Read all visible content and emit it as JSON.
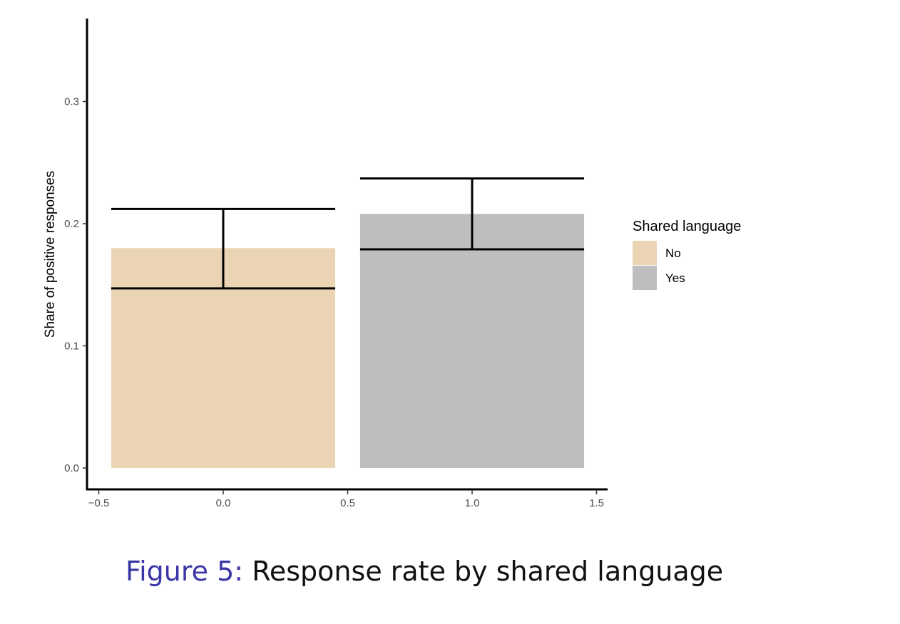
{
  "chart_data": {
    "type": "bar",
    "ylabel": "Share of positive responses",
    "xlabel": "",
    "xlim": [
      -0.5,
      1.5
    ],
    "ylim": [
      0,
      0.36
    ],
    "x_ticks": [
      "−0.5",
      "0.0",
      "0.5",
      "1.0",
      "1.5"
    ],
    "x_tick_values": [
      -0.5,
      0.0,
      0.5,
      1.0,
      1.5
    ],
    "y_ticks": [
      "0.0",
      "0.1",
      "0.2",
      "0.3"
    ],
    "y_tick_values": [
      0.0,
      0.1,
      0.2,
      0.3
    ],
    "grid": false,
    "bar_width": 0.9,
    "series": [
      {
        "name": "No",
        "x": 0.0,
        "value": 0.18,
        "ci_low": 0.147,
        "ci_high": 0.212,
        "color": "#EAD4B4"
      },
      {
        "name": "Yes",
        "x": 1.0,
        "value": 0.208,
        "ci_low": 0.179,
        "ci_high": 0.237,
        "color": "#BFBDC0"
      }
    ],
    "legend": {
      "title": "Shared language",
      "placement": "right",
      "items": [
        {
          "label": "No",
          "color": "#EAD4B4"
        },
        {
          "label": "Yes",
          "color": "#BFBDC0"
        }
      ]
    }
  },
  "caption": {
    "number": "Figure 5:",
    "text": "Response rate by shared language"
  }
}
